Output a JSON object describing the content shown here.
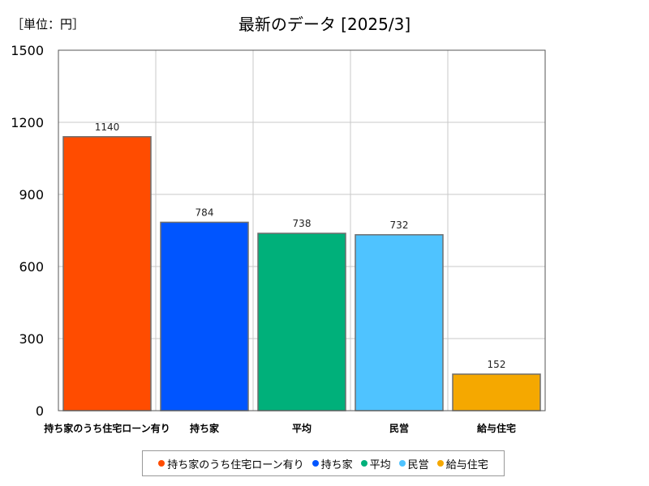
{
  "header": {
    "unit_label": "［単位：円］",
    "title": "最新のデータ [2025/3]"
  },
  "chart_data": {
    "type": "bar",
    "title": "最新のデータ [2025/3]",
    "categories": [
      "持ち家のうち住宅ローン有り",
      "持ち家",
      "平均",
      "民営",
      "給与住宅"
    ],
    "values": [
      1140,
      784,
      738,
      732,
      152
    ],
    "colors": [
      "#ff4c00",
      "#0055ff",
      "#00b07a",
      "#4fc3ff",
      "#f5a800"
    ],
    "ylim": [
      0,
      1500
    ],
    "yticks": [
      0,
      300,
      600,
      900,
      1200,
      1500
    ],
    "grid": true,
    "legend_position": "bottom",
    "data_labels": true
  }
}
